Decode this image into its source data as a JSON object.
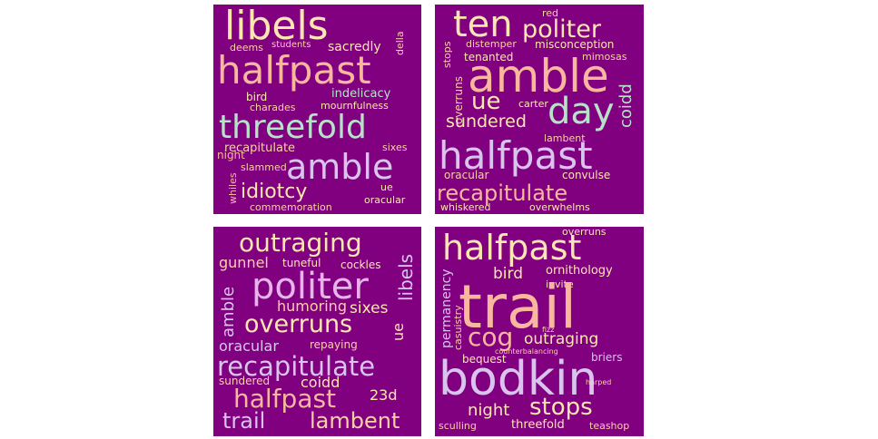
{
  "colors": {
    "background": "#800080",
    "page": "#ffffff",
    "palette": [
      "#fde6b0",
      "#fbd0a6",
      "#f9b79e",
      "#b6e3c8",
      "#d8c4ec",
      "#e6b4e8",
      "#f3a6b8"
    ]
  },
  "clouds": [
    {
      "id": "top-left",
      "words": [
        {
          "text": "libels",
          "color": "#fde6b0"
        },
        {
          "text": "deems",
          "color": "#fbd0a6"
        },
        {
          "text": "students",
          "color": "#fbd0a6"
        },
        {
          "text": "sacredly",
          "color": "#fde6b0"
        },
        {
          "text": "della",
          "color": "#fbd0a6"
        },
        {
          "text": "halfpast",
          "color": "#f9b79e"
        },
        {
          "text": "bird",
          "color": "#fde6b0"
        },
        {
          "text": "indelicacy",
          "color": "#b6e3c8"
        },
        {
          "text": "charades",
          "color": "#fbd0a6"
        },
        {
          "text": "mournfulness",
          "color": "#fde6b0"
        },
        {
          "text": "threefold",
          "color": "#b6e3c8"
        },
        {
          "text": "recapitulate",
          "color": "#fbd0a6"
        },
        {
          "text": "sixes",
          "color": "#fbd0a6"
        },
        {
          "text": "night",
          "color": "#f9b79e"
        },
        {
          "text": "slammed",
          "color": "#fbd0a6"
        },
        {
          "text": "amble",
          "color": "#d8c4ec"
        },
        {
          "text": "whiles",
          "color": "#f9b79e"
        },
        {
          "text": "idiotcy",
          "color": "#fde6b0"
        },
        {
          "text": "ue",
          "color": "#fde6b0"
        },
        {
          "text": "oracular",
          "color": "#fde6b0"
        },
        {
          "text": "commemoration",
          "color": "#fbd0a6"
        }
      ]
    },
    {
      "id": "top-right",
      "words": [
        {
          "text": "ten",
          "color": "#fde6b0"
        },
        {
          "text": "red",
          "color": "#fbd0a6"
        },
        {
          "text": "politer",
          "color": "#fde6b0"
        },
        {
          "text": "stops",
          "color": "#fbd0a6"
        },
        {
          "text": "distemper",
          "color": "#fbd0a6"
        },
        {
          "text": "misconception",
          "color": "#fde6b0"
        },
        {
          "text": "tenanted",
          "color": "#fde6b0"
        },
        {
          "text": "mimosas",
          "color": "#fbd0a6"
        },
        {
          "text": "amble",
          "color": "#f9b79e"
        },
        {
          "text": "overruns",
          "color": "#fbd0a6"
        },
        {
          "text": "ue",
          "color": "#fde6b0"
        },
        {
          "text": "carter",
          "color": "#fde6b0"
        },
        {
          "text": "coidd",
          "color": "#b6e3c8"
        },
        {
          "text": "day",
          "color": "#b6e3c8"
        },
        {
          "text": "sundered",
          "color": "#fde6b0"
        },
        {
          "text": "lambent",
          "color": "#fbd0a6"
        },
        {
          "text": "halfpast",
          "color": "#d8c4ec"
        },
        {
          "text": "oracular",
          "color": "#fbd0a6"
        },
        {
          "text": "convulse",
          "color": "#fde6b0"
        },
        {
          "text": "recapitulate",
          "color": "#f9b79e"
        },
        {
          "text": "whiskered",
          "color": "#fde6b0"
        },
        {
          "text": "overwhelms",
          "color": "#fde6b0"
        }
      ]
    },
    {
      "id": "bottom-left",
      "words": [
        {
          "text": "outraging",
          "color": "#fde6b0"
        },
        {
          "text": "gunnel",
          "color": "#fbd0a6"
        },
        {
          "text": "tuneful",
          "color": "#fde6b0"
        },
        {
          "text": "cockles",
          "color": "#fde6b0"
        },
        {
          "text": "libels",
          "color": "#d8c4ec"
        },
        {
          "text": "politer",
          "color": "#e6b4e8"
        },
        {
          "text": "amble",
          "color": "#d8c4ec"
        },
        {
          "text": "humoring",
          "color": "#fbd0a6"
        },
        {
          "text": "sixes",
          "color": "#fde6b0"
        },
        {
          "text": "overruns",
          "color": "#fde6b0"
        },
        {
          "text": "ue",
          "color": "#fde6b0"
        },
        {
          "text": "oracular",
          "color": "#d8c4ec"
        },
        {
          "text": "repaying",
          "color": "#fbd0a6"
        },
        {
          "text": "recapitulate",
          "color": "#d8c4ec"
        },
        {
          "text": "sundered",
          "color": "#fbd0a6"
        },
        {
          "text": "coidd",
          "color": "#fde6b0"
        },
        {
          "text": "halfpast",
          "color": "#f9b79e"
        },
        {
          "text": "23d",
          "color": "#fde6b0"
        },
        {
          "text": "trail",
          "color": "#d8c4ec"
        },
        {
          "text": "lambent",
          "color": "#fbd0a6"
        }
      ]
    },
    {
      "id": "bottom-right",
      "words": [
        {
          "text": "halfpast",
          "color": "#fde6b0"
        },
        {
          "text": "overruns",
          "color": "#fde6b0"
        },
        {
          "text": "bird",
          "color": "#fde6b0"
        },
        {
          "text": "ornithology",
          "color": "#fde6b0"
        },
        {
          "text": "permanency",
          "color": "#d8c4ec"
        },
        {
          "text": "invite",
          "color": "#fde6b0"
        },
        {
          "text": "trail",
          "color": "#f9b79e"
        },
        {
          "text": "casuistry",
          "color": "#fbd0a6"
        },
        {
          "text": "cog",
          "color": "#f9b79e"
        },
        {
          "text": "fizz",
          "color": "#fbd0a6"
        },
        {
          "text": "outraging",
          "color": "#fde6b0"
        },
        {
          "text": "counterbalancing",
          "color": "#fbd0a6"
        },
        {
          "text": "bequest",
          "color": "#fde6b0"
        },
        {
          "text": "briers",
          "color": "#d8c4ec"
        },
        {
          "text": "bodkin",
          "color": "#d8c4ec"
        },
        {
          "text": "harped",
          "color": "#fbd0a6"
        },
        {
          "text": "night",
          "color": "#fde6b0"
        },
        {
          "text": "stops",
          "color": "#fde6b0"
        },
        {
          "text": "sculling",
          "color": "#fbd0a6"
        },
        {
          "text": "threefold",
          "color": "#fde6b0"
        },
        {
          "text": "teashop",
          "color": "#fbd0a6"
        }
      ]
    }
  ]
}
